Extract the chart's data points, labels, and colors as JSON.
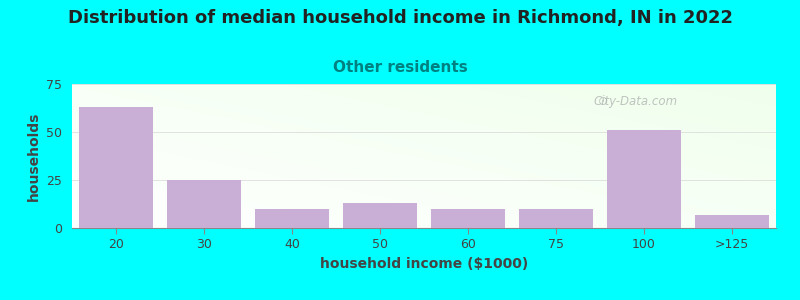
{
  "title": "Distribution of median household income in Richmond, IN in 2022",
  "subtitle": "Other residents",
  "xlabel": "household income ($1000)",
  "ylabel": "households",
  "background_color": "#00FFFF",
  "plot_bg_top": "#e8f5e0",
  "plot_bg_bottom": "#ffffff",
  "bar_color": "#c9aed6",
  "bar_edge_color": "#b090c0",
  "categories": [
    "20",
    "30",
    "40",
    "50",
    "60",
    "75",
    "100",
    ">125"
  ],
  "values": [
    63,
    25,
    10,
    13,
    10,
    10,
    51,
    7
  ],
  "ylim": [
    0,
    75
  ],
  "yticks": [
    0,
    25,
    50,
    75
  ],
  "title_fontsize": 13,
  "subtitle_fontsize": 11,
  "subtitle_color": "#008080",
  "axis_label_fontsize": 10,
  "tick_fontsize": 9,
  "watermark": "City-Data.com"
}
